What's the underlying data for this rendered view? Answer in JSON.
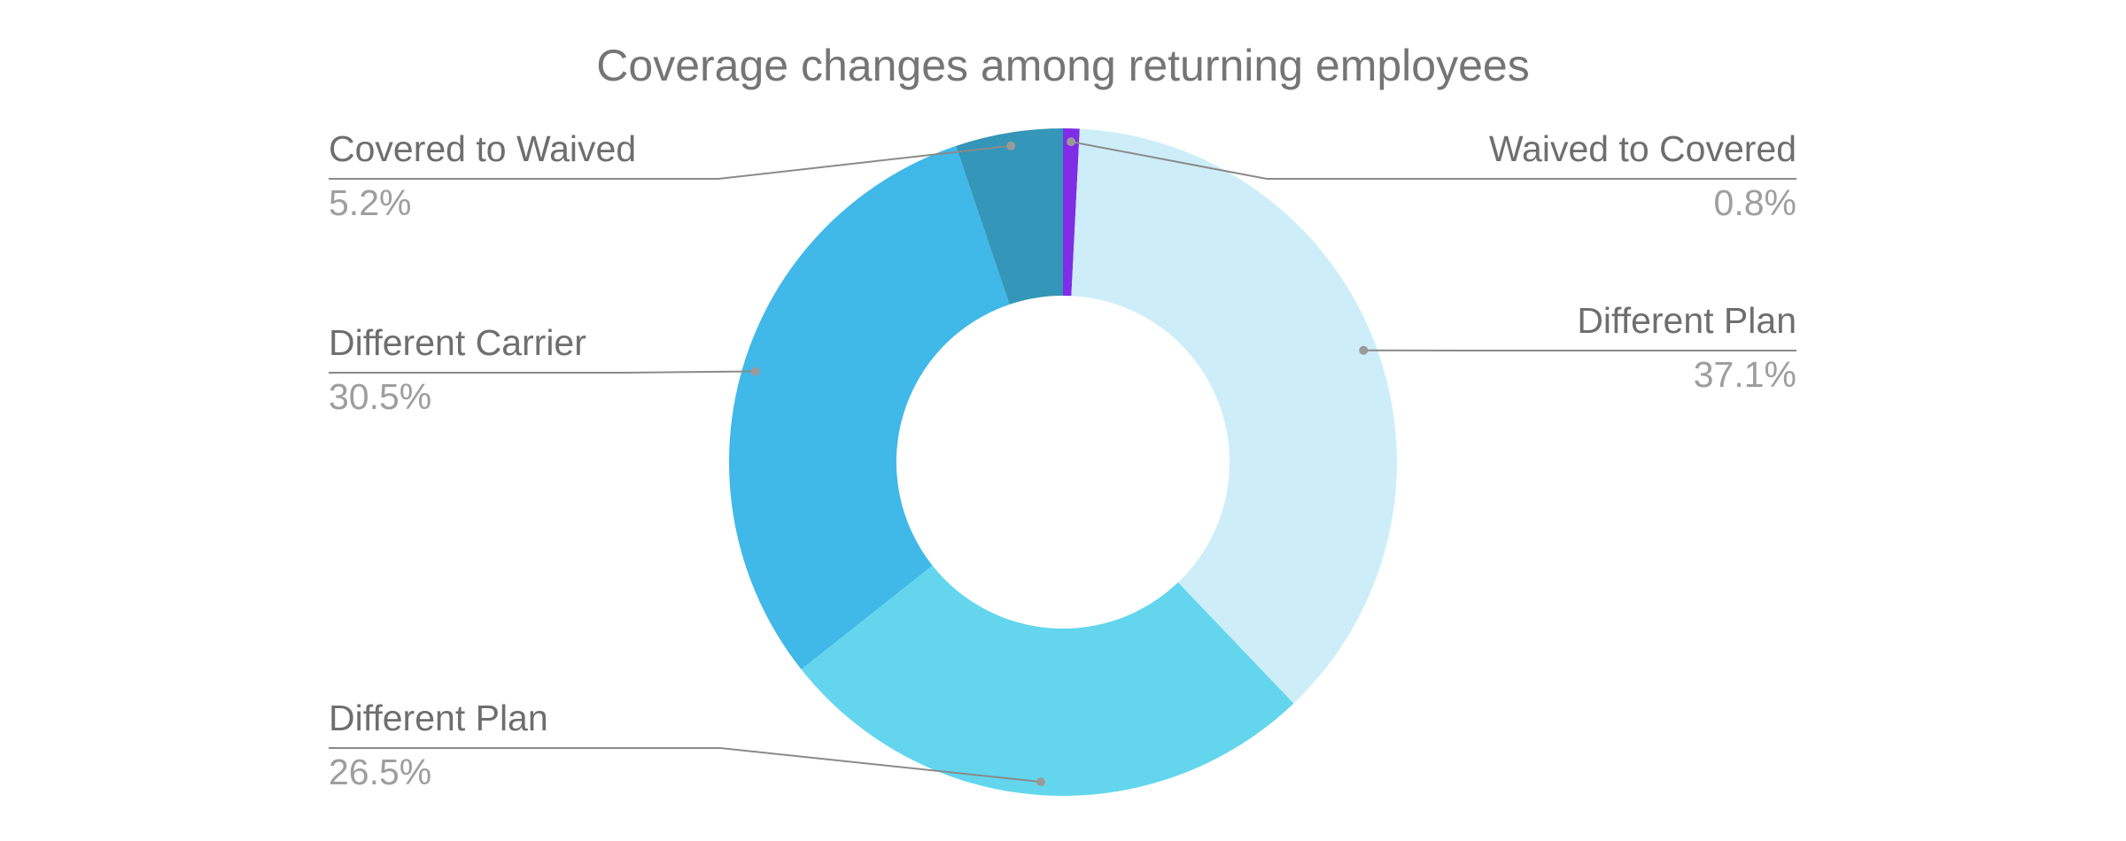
{
  "chart_data": {
    "type": "pie",
    "subtype": "donut",
    "title": "Coverage changes among returning employees",
    "legend_position": "none",
    "grid": false,
    "inner_radius_ratio": 0.5,
    "start_angle_deg": 0,
    "direction": "clockwise",
    "slices": [
      {
        "label": "Waived to Covered",
        "value": 0.8,
        "percent_text": "0.8%",
        "color": "#7f2de6"
      },
      {
        "label": "Different Plan",
        "value": 37.1,
        "percent_text": "37.1%",
        "color": "#cdeef9"
      },
      {
        "label": "Different Plan",
        "value": 26.5,
        "percent_text": "26.5%",
        "color": "#63d6ee"
      },
      {
        "label": "Different Carrier",
        "value": 30.5,
        "percent_text": "30.5%",
        "color": "#40b8e8"
      },
      {
        "label": "Covered to Waived",
        "value": 5.2,
        "percent_text": "5.2%",
        "color": "#3496b8"
      }
    ],
    "colors": {
      "background": "#ffffff",
      "title_text": "#757575",
      "label_text": "#6e6e6e",
      "percent_text": "#9e9e9e",
      "connector_line": "#8a8a8a",
      "connector_dot": "#9a9a9a",
      "hole": "#ffffff"
    }
  }
}
